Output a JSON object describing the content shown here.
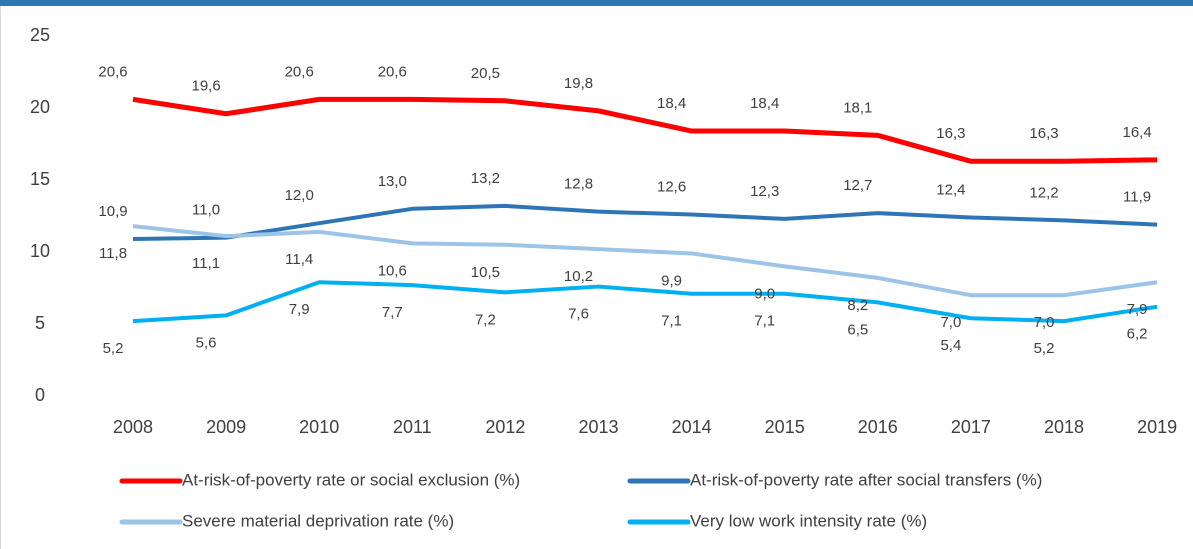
{
  "chart_data": {
    "type": "line",
    "categories": [
      "2008",
      "2009",
      "2010",
      "2011",
      "2012",
      "2013",
      "2014",
      "2015",
      "2016",
      "2017",
      "2018",
      "2019"
    ],
    "series": [
      {
        "name": "At-risk-of-poverty rate or social exclusion (%)",
        "color": "#ff0000",
        "values": [
          20.6,
          19.6,
          20.6,
          20.6,
          20.5,
          19.8,
          18.4,
          18.4,
          18.1,
          16.3,
          16.3,
          16.4
        ],
        "value_labels": [
          "20,6",
          "19,6",
          "20,6",
          "20,6",
          "20,5",
          "19,8",
          "18,4",
          "18,4",
          "18,1",
          "16,3",
          "16,3",
          "16,4"
        ]
      },
      {
        "name": "At-risk-of-poverty rate after social transfers (%)",
        "color": "#2e75b6",
        "values": [
          10.9,
          11.0,
          12.0,
          13.0,
          13.2,
          12.8,
          12.6,
          12.3,
          12.7,
          12.4,
          12.2,
          11.9
        ],
        "value_labels": [
          "10,9",
          "11,0",
          "12,0",
          "13,0",
          "13,2",
          "12,8",
          "12,6",
          "12,3",
          "12,7",
          "12,4",
          "12,2",
          "11,9"
        ]
      },
      {
        "name": "Severe material deprivation rate (%)",
        "color": "#9dc3e6",
        "values": [
          11.8,
          11.1,
          11.4,
          10.6,
          10.5,
          10.2,
          9.9,
          9.0,
          8.2,
          7.0,
          7.0,
          7.9
        ],
        "value_labels": [
          "11,8",
          "11,1",
          "11,4",
          "10,6",
          "10,5",
          "10,2",
          "9,9",
          "9,0",
          "8,2",
          "7,0",
          "7,0",
          "7,9"
        ]
      },
      {
        "name": "Very low work intensity rate (%)",
        "color": "#00b0f0",
        "values": [
          5.2,
          5.6,
          7.9,
          7.7,
          7.2,
          7.6,
          7.1,
          7.1,
          6.5,
          5.4,
          5.2,
          6.2
        ],
        "value_labels": [
          "5,2",
          "5,6",
          "7,9",
          "7,7",
          "7,2",
          "7,6",
          "7,1",
          "7,1",
          "6,5",
          "5,4",
          "5,2",
          "6,2"
        ]
      }
    ],
    "ylim": [
      0,
      25
    ],
    "yticks": [
      0,
      5,
      10,
      15,
      20,
      25
    ],
    "grid": false
  }
}
